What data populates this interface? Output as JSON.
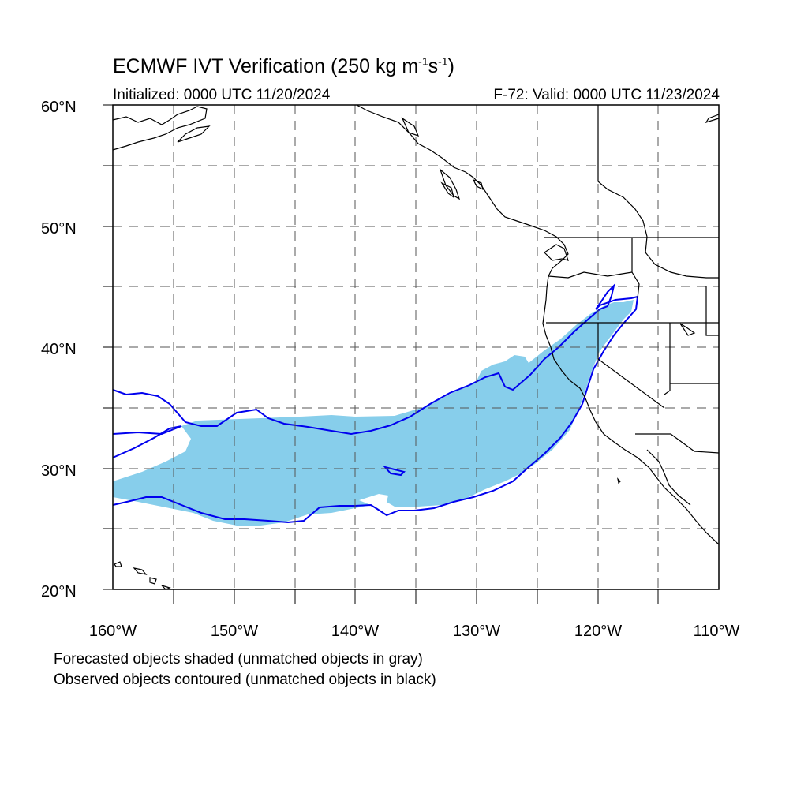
{
  "title": {
    "text_prefix": "ECMWF IVT Verification (250 kg m",
    "sup1": "-1",
    "mid": "s",
    "sup2": "-1",
    "suffix": ")"
  },
  "initialized": "Initialized: 0000 UTC 11/20/2024",
  "valid": "F-72: Valid: 0000 UTC 11/23/2024",
  "lat_labels": [
    "60°N",
    "50°N",
    "40°N",
    "30°N",
    "20°N"
  ],
  "lon_labels": [
    "160°W",
    "150°W",
    "140°W",
    "130°W",
    "120°W",
    "110°W"
  ],
  "notes": [
    "Forecasted objects shaded (unmatched objects in gray)",
    "Observed objects contoured (unmatched objects in black)"
  ],
  "colors": {
    "forecast_fill": "#87ceeb",
    "observed_contour": "#0000ee",
    "coastline": "#000000",
    "grid": "#555555"
  },
  "map_extent": {
    "lon_min": -160,
    "lon_max": -110,
    "lat_min": 20,
    "lat_max": 60
  }
}
